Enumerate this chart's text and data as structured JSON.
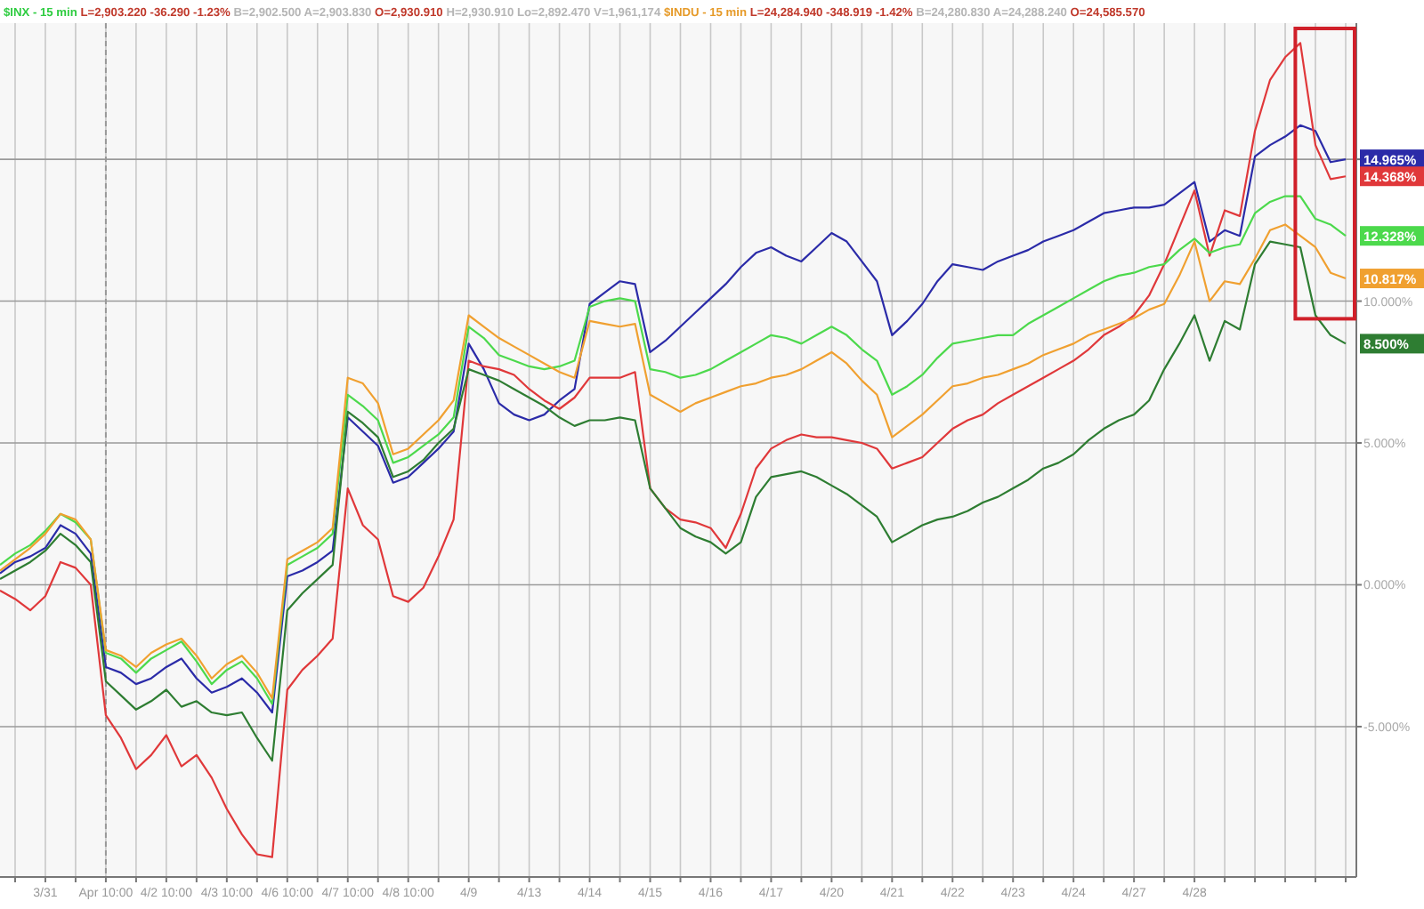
{
  "chart_data": {
    "type": "line",
    "categories": [
      null,
      null,
      null,
      "3/31",
      null,
      null,
      null,
      "Apr 10:00",
      null,
      null,
      null,
      "4/2 10:00",
      null,
      null,
      null,
      "4/3 10:00",
      null,
      null,
      null,
      "4/6 10:00",
      null,
      null,
      null,
      "4/7 10:00",
      null,
      null,
      null,
      "4/8 10:00",
      null,
      null,
      null,
      "4/9",
      null,
      null,
      null,
      "4/13",
      null,
      null,
      null,
      "4/14",
      null,
      null,
      null,
      "4/15",
      null,
      null,
      null,
      "4/16",
      null,
      null,
      null,
      "4/17",
      null,
      null,
      null,
      "4/20",
      null,
      null,
      null,
      "4/21",
      null,
      null,
      null,
      "4/22",
      null,
      null,
      null,
      "4/23",
      null,
      null,
      null,
      "4/24",
      null,
      null,
      null,
      "4/27",
      null,
      null,
      null,
      "4/28",
      null,
      null,
      null,
      null,
      null,
      null,
      null,
      null,
      null,
      null
    ],
    "series": [
      {
        "color": "#2b2ba8",
        "values": [
          0.4,
          0.8,
          1.0,
          1.3,
          2.1,
          1.8,
          1.1,
          -2.9,
          -3.1,
          -3.5,
          -3.3,
          -2.9,
          -2.6,
          -3.3,
          -3.8,
          -3.6,
          -3.3,
          -3.8,
          -4.5,
          0.3,
          0.5,
          0.8,
          1.2,
          5.9,
          5.4,
          4.9,
          3.6,
          3.8,
          4.3,
          4.8,
          5.4,
          8.5,
          7.6,
          6.4,
          6.0,
          5.8,
          6.0,
          6.5,
          6.9,
          9.9,
          10.3,
          10.7,
          10.6,
          8.2,
          8.6,
          9.1,
          9.6,
          10.1,
          10.6,
          11.2,
          11.7,
          11.9,
          11.6,
          11.4,
          11.9,
          12.4,
          12.1,
          11.4,
          10.7,
          8.8,
          9.3,
          9.9,
          10.7,
          11.3,
          11.2,
          11.1,
          11.4,
          11.6,
          11.8,
          12.1,
          12.3,
          12.5,
          12.8,
          13.1,
          13.2,
          13.3,
          13.3,
          13.4,
          13.8,
          14.2,
          12.1,
          12.5,
          12.3,
          15.1,
          15.5,
          15.8,
          16.2,
          16.0,
          14.9,
          15.0
        ]
      },
      {
        "color": "#e0383a",
        "values": [
          -0.2,
          -0.5,
          -0.9,
          -0.4,
          0.8,
          0.6,
          0.0,
          -4.6,
          -5.4,
          -6.5,
          -6.0,
          -5.3,
          -6.4,
          -6.0,
          -6.8,
          -7.9,
          -8.8,
          -9.5,
          -9.6,
          -3.7,
          -3.0,
          -2.5,
          -1.9,
          3.4,
          2.1,
          1.6,
          -0.4,
          -0.6,
          -0.1,
          1.0,
          2.3,
          7.9,
          7.7,
          7.6,
          7.4,
          6.9,
          6.5,
          6.2,
          6.6,
          7.3,
          7.3,
          7.3,
          7.5,
          3.4,
          2.7,
          2.3,
          2.2,
          2.0,
          1.3,
          2.5,
          4.1,
          4.8,
          5.1,
          5.3,
          5.2,
          5.2,
          5.1,
          5.0,
          4.8,
          4.1,
          4.3,
          4.5,
          5.0,
          5.5,
          5.8,
          6.0,
          6.4,
          6.7,
          7.0,
          7.3,
          7.6,
          7.9,
          8.3,
          8.8,
          9.1,
          9.5,
          10.2,
          11.3,
          12.6,
          13.9,
          11.6,
          13.2,
          13.0,
          16.0,
          17.8,
          18.6,
          19.1,
          15.5,
          14.3,
          14.4
        ]
      },
      {
        "color": "#4cd94c",
        "values": [
          0.7,
          1.1,
          1.4,
          1.9,
          2.5,
          2.2,
          1.6,
          -2.4,
          -2.6,
          -3.1,
          -2.6,
          -2.3,
          -2.0,
          -2.7,
          -3.5,
          -3.0,
          -2.7,
          -3.3,
          -4.2,
          0.7,
          1.0,
          1.3,
          1.8,
          6.7,
          6.3,
          5.8,
          4.3,
          4.5,
          4.9,
          5.3,
          5.9,
          9.1,
          8.7,
          8.1,
          7.9,
          7.7,
          7.6,
          7.7,
          7.9,
          9.8,
          10.0,
          10.1,
          10.0,
          7.6,
          7.5,
          7.3,
          7.4,
          7.6,
          7.9,
          8.2,
          8.5,
          8.8,
          8.7,
          8.5,
          8.8,
          9.1,
          8.8,
          8.3,
          7.9,
          6.7,
          7.0,
          7.4,
          8.0,
          8.5,
          8.6,
          8.7,
          8.8,
          8.8,
          9.2,
          9.5,
          9.8,
          10.1,
          10.4,
          10.7,
          10.9,
          11.0,
          11.2,
          11.3,
          11.8,
          12.2,
          11.7,
          11.9,
          12.0,
          13.1,
          13.5,
          13.7,
          13.7,
          12.9,
          12.7,
          12.3
        ]
      },
      {
        "color": "#f0a030",
        "values": [
          0.5,
          0.9,
          1.3,
          1.8,
          2.5,
          2.3,
          1.6,
          -2.3,
          -2.5,
          -2.9,
          -2.4,
          -2.1,
          -1.9,
          -2.5,
          -3.3,
          -2.8,
          -2.5,
          -3.1,
          -4.0,
          0.9,
          1.2,
          1.5,
          2.0,
          7.3,
          7.1,
          6.4,
          4.6,
          4.8,
          5.3,
          5.8,
          6.5,
          9.5,
          9.1,
          8.7,
          8.4,
          8.1,
          7.8,
          7.5,
          7.3,
          9.3,
          9.2,
          9.1,
          9.2,
          6.7,
          6.4,
          6.1,
          6.4,
          6.6,
          6.8,
          7.0,
          7.1,
          7.3,
          7.4,
          7.6,
          7.9,
          8.2,
          7.8,
          7.2,
          6.7,
          5.2,
          5.6,
          6.0,
          6.5,
          7.0,
          7.1,
          7.3,
          7.4,
          7.6,
          7.8,
          8.1,
          8.3,
          8.5,
          8.8,
          9.0,
          9.2,
          9.4,
          9.7,
          9.9,
          10.9,
          12.1,
          10.0,
          10.7,
          10.6,
          11.5,
          12.5,
          12.7,
          12.3,
          11.9,
          11.0,
          10.8
        ]
      },
      {
        "color": "#2e7d32",
        "values": [
          0.2,
          0.5,
          0.8,
          1.2,
          1.8,
          1.4,
          0.8,
          -3.4,
          -3.9,
          -4.4,
          -4.1,
          -3.7,
          -4.3,
          -4.1,
          -4.5,
          -4.6,
          -4.5,
          -5.4,
          -6.2,
          -0.9,
          -0.3,
          0.2,
          0.7,
          6.1,
          5.7,
          5.2,
          3.8,
          4.0,
          4.4,
          5.0,
          5.5,
          7.6,
          7.4,
          7.2,
          6.9,
          6.6,
          6.3,
          5.9,
          5.6,
          5.8,
          5.8,
          5.9,
          5.8,
          3.4,
          2.7,
          2.0,
          1.7,
          1.5,
          1.1,
          1.5,
          3.1,
          3.8,
          3.9,
          4.0,
          3.8,
          3.5,
          3.2,
          2.8,
          2.4,
          1.5,
          1.8,
          2.1,
          2.3,
          2.4,
          2.6,
          2.9,
          3.1,
          3.4,
          3.7,
          4.1,
          4.3,
          4.6,
          5.1,
          5.5,
          5.8,
          6.0,
          6.5,
          7.6,
          8.5,
          9.5,
          7.9,
          9.3,
          9.0,
          11.3,
          12.1,
          12.0,
          11.9,
          9.5,
          8.8,
          8.5
        ]
      }
    ],
    "ylim": [
      -10.3,
      19.8
    ],
    "yticks": [
      {
        "value": -5,
        "label": "-5.000%"
      },
      {
        "value": 0,
        "label": "0.000%"
      },
      {
        "value": 5,
        "label": "5.000%"
      },
      {
        "value": 10,
        "label": "10.000%"
      },
      {
        "value": 15,
        "label": null
      }
    ],
    "grid": true,
    "ref_lines": [
      {
        "axis": "x",
        "value": "Apr 10:00",
        "line_style": "dashed",
        "color": "#999999"
      }
    ],
    "annotations": [
      "$INX - 15 min",
      "L=2,903.220 -36.290 -1.23%",
      "B=2,902.500 A=2,903.830",
      "O=2,930.910",
      "H=2,930.910 Lo=2,892.470 V=1,961,174",
      "$INDU - 15 min",
      "L=24,284.940 -348.919 -1.42%",
      "B=24,280.830 A=24,288.240",
      "O=24,585.570",
      "14.965%",
      "14.368%",
      "12.328%",
      "10.817%",
      "8.500%"
    ]
  }
}
